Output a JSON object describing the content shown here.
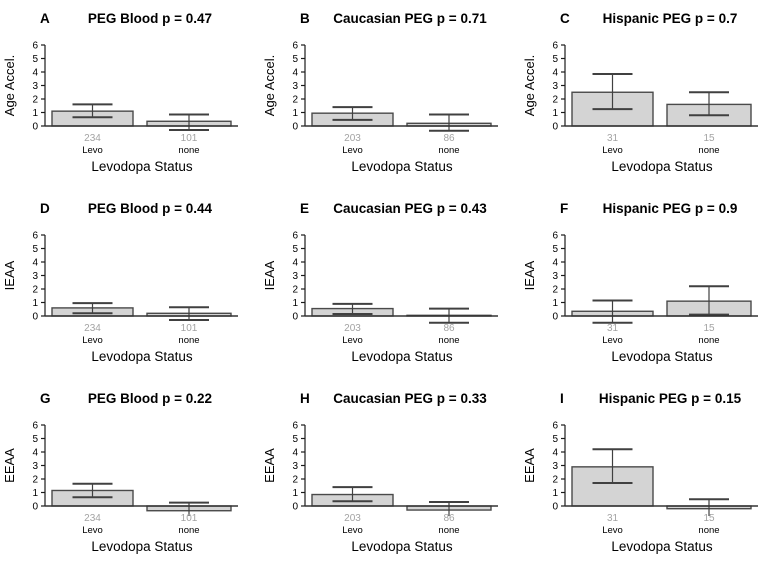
{
  "figure": {
    "xlabel": "Levodopa Status",
    "categories": [
      "Levo",
      "none"
    ],
    "ylim": [
      0,
      6
    ],
    "yticks": [
      0,
      1,
      2,
      3,
      4,
      5,
      6
    ],
    "colors": {
      "background": "#ffffff",
      "bar_fill": "#d4d4d4",
      "bar_stroke": "#4a4a4a",
      "error_bar": "#404040",
      "axis": "#1a1a1a",
      "zero_line": "#333333",
      "sample_size_label": "#a3a3a3",
      "text": "#000000"
    }
  },
  "chart_data": [
    {
      "type": "bar",
      "panel": "A",
      "title": "PEG Blood p = 0.47",
      "ylabel": "Age Accel.",
      "xlabel": "Levodopa Status",
      "categories": [
        "Levo",
        "none"
      ],
      "sample_sizes": [
        "234",
        "101"
      ],
      "values": [
        1.1,
        0.35
      ],
      "error_low": [
        0.65,
        -0.3
      ],
      "error_high": [
        1.6,
        0.85
      ],
      "ylim": [
        0,
        6
      ]
    },
    {
      "type": "bar",
      "panel": "B",
      "title": "Caucasian PEG p = 0.71",
      "ylabel": "Age Accel.",
      "xlabel": "Levodopa Status",
      "categories": [
        "Levo",
        "none"
      ],
      "sample_sizes": [
        "203",
        "86"
      ],
      "values": [
        0.95,
        0.2
      ],
      "error_low": [
        0.45,
        -0.35
      ],
      "error_high": [
        1.4,
        0.85
      ],
      "ylim": [
        0,
        6
      ]
    },
    {
      "type": "bar",
      "panel": "C",
      "title": "Hispanic PEG p = 0.7",
      "ylabel": "Age Accel.",
      "xlabel": "Levodopa Status",
      "categories": [
        "Levo",
        "none"
      ],
      "sample_sizes": [
        "31",
        "15"
      ],
      "values": [
        2.5,
        1.6
      ],
      "error_low": [
        1.25,
        0.8
      ],
      "error_high": [
        3.85,
        2.5
      ],
      "ylim": [
        0,
        6
      ]
    },
    {
      "type": "bar",
      "panel": "D",
      "title": "PEG Blood p = 0.44",
      "ylabel": "IEAA",
      "xlabel": "Levodopa Status",
      "categories": [
        "Levo",
        "none"
      ],
      "sample_sizes": [
        "234",
        "101"
      ],
      "values": [
        0.6,
        0.2
      ],
      "error_low": [
        0.2,
        -0.3
      ],
      "error_high": [
        0.95,
        0.65
      ],
      "ylim": [
        0,
        6
      ]
    },
    {
      "type": "bar",
      "panel": "E",
      "title": "Caucasian PEG p = 0.43",
      "ylabel": "IEAA",
      "xlabel": "Levodopa Status",
      "categories": [
        "Levo",
        "none"
      ],
      "sample_sizes": [
        "203",
        "86"
      ],
      "values": [
        0.55,
        0.05
      ],
      "error_low": [
        0.15,
        -0.5
      ],
      "error_high": [
        0.9,
        0.55
      ],
      "ylim": [
        0,
        6
      ]
    },
    {
      "type": "bar",
      "panel": "F",
      "title": "Hispanic PEG p = 0.9",
      "ylabel": "IEAA",
      "xlabel": "Levodopa Status",
      "categories": [
        "Levo",
        "none"
      ],
      "sample_sizes": [
        "31",
        "15"
      ],
      "values": [
        0.35,
        1.1
      ],
      "error_low": [
        -0.5,
        0.1
      ],
      "error_high": [
        1.15,
        2.2
      ],
      "ylim": [
        0,
        6
      ]
    },
    {
      "type": "bar",
      "panel": "G",
      "title": "PEG Blood p = 0.22",
      "ylabel": "EEAA",
      "xlabel": "Levodopa Status",
      "categories": [
        "Levo",
        "none"
      ],
      "sample_sizes": [
        "234",
        "101"
      ],
      "values": [
        1.15,
        -0.35
      ],
      "error_low": [
        0.65,
        -0.9
      ],
      "error_high": [
        1.65,
        0.25
      ],
      "ylim": [
        0,
        6
      ]
    },
    {
      "type": "bar",
      "panel": "H",
      "title": "Caucasian PEG p = 0.33",
      "ylabel": "EEAA",
      "xlabel": "Levodopa Status",
      "categories": [
        "Levo",
        "none"
      ],
      "sample_sizes": [
        "203",
        "86"
      ],
      "values": [
        0.85,
        -0.3
      ],
      "error_low": [
        0.35,
        -0.9
      ],
      "error_high": [
        1.4,
        0.3
      ],
      "ylim": [
        0,
        6
      ]
    },
    {
      "type": "bar",
      "panel": "I",
      "title": "Hispanic PEG p = 0.15",
      "ylabel": "EEAA",
      "xlabel": "Levodopa Status",
      "categories": [
        "Levo",
        "none"
      ],
      "sample_sizes": [
        "31",
        "15"
      ],
      "values": [
        2.9,
        -0.2
      ],
      "error_low": [
        1.7,
        -0.9
      ],
      "error_high": [
        4.2,
        0.5
      ],
      "ylim": [
        0,
        6
      ]
    }
  ]
}
